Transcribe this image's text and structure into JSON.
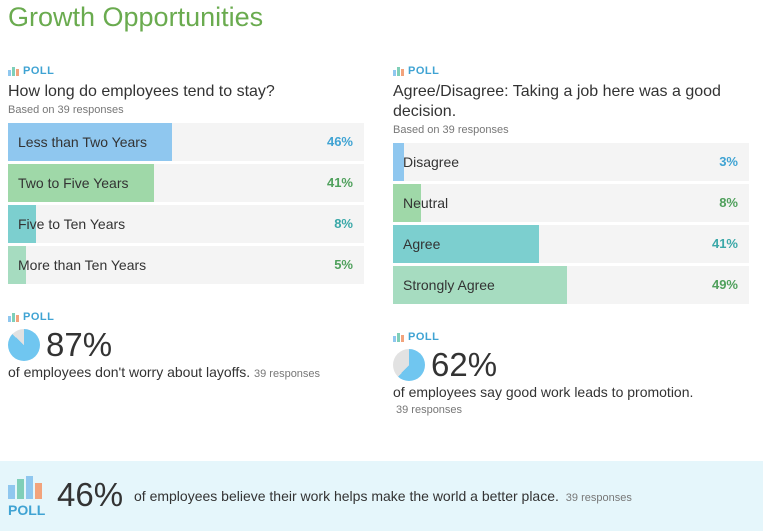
{
  "title": "Growth Opportunities",
  "poll_label": "POLL",
  "polls": [
    {
      "question": "How long do employees tend to stay?",
      "based_on": "Based on 39 responses",
      "options": [
        {
          "label": "Less than Two Years",
          "pct": "46%",
          "value": 46,
          "color": "#8fc7ef",
          "pct_color": "#3fa3d3"
        },
        {
          "label": "Two to Five Years",
          "pct": "41%",
          "value": 41,
          "color": "#9fd8a8",
          "pct_color": "#4fa05c"
        },
        {
          "label": "Five to Ten Years",
          "pct": "8%",
          "value": 8,
          "color": "#7ccfcf",
          "pct_color": "#3aa8a8"
        },
        {
          "label": "More than Ten Years",
          "pct": "5%",
          "value": 5,
          "color": "#a6dcc0",
          "pct_color": "#4fa05c"
        }
      ]
    },
    {
      "question": "Agree/Disagree: Taking a job here was a good decision.",
      "based_on": "Based on 39 responses",
      "options": [
        {
          "label": "Disagree",
          "pct": "3%",
          "value": 3,
          "color": "#8fc7ef",
          "pct_color": "#3fa3d3"
        },
        {
          "label": "Neutral",
          "pct": "8%",
          "value": 8,
          "color": "#9fd8a8",
          "pct_color": "#4fa05c"
        },
        {
          "label": "Agree",
          "pct": "41%",
          "value": 41,
          "color": "#7ccfcf",
          "pct_color": "#3aa8a8"
        },
        {
          "label": "Strongly Agree",
          "pct": "49%",
          "value": 49,
          "color": "#a6dcc0",
          "pct_color": "#4fa05c"
        }
      ]
    }
  ],
  "stats": [
    {
      "pct": "87%",
      "value": 87,
      "text": "of employees don't worry about layoffs.",
      "responses": "39 responses"
    },
    {
      "pct": "62%",
      "value": 62,
      "text": "of employees say good work leads to promotion.",
      "responses": "39 responses"
    }
  ],
  "banner": {
    "pct": "46%",
    "text": "of employees believe their work helps make the world a better place.",
    "responses": "39 responses"
  },
  "colors": {
    "title": "#6aab4f",
    "accent": "#3fa3d3",
    "pie_fill": "#70c6f0",
    "pie_bg": "#e2e2e2",
    "banner_bg": "#e5f6fb"
  }
}
